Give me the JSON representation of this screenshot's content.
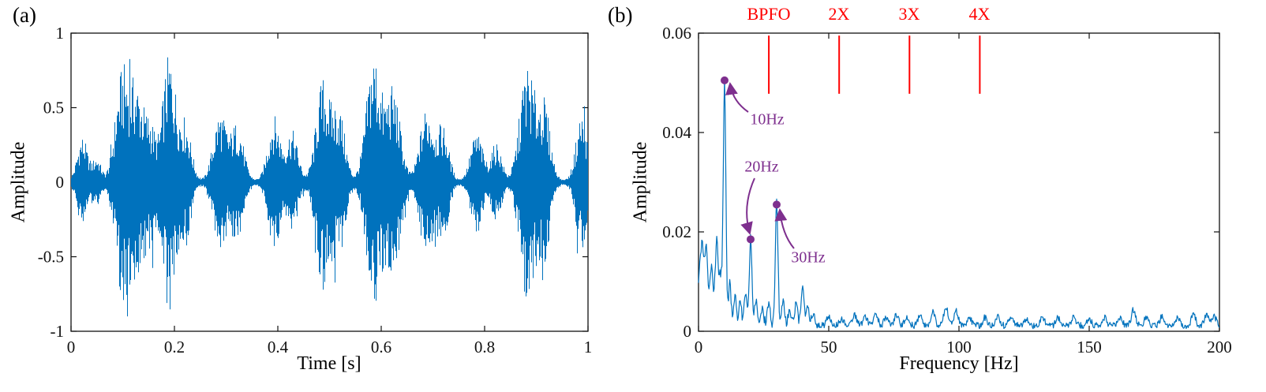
{
  "figure_background": "#ffffff",
  "chart_data": [
    {
      "type": "line",
      "panel_label": "(a)",
      "series_description": "Impulsive bearing vibration time signal with bursts repeating about every 0.1 s",
      "xlabel": "Time [s]",
      "ylabel": "Amplitude",
      "xlim": [
        0,
        1
      ],
      "ylim": [
        -1,
        1
      ],
      "xticks": [
        0,
        0.2,
        0.4,
        0.6,
        0.8,
        1
      ],
      "xtick_labels": [
        "0",
        "0.2",
        "0.4",
        "0.6",
        "0.8",
        "1"
      ],
      "yticks": [
        -1,
        -0.5,
        0,
        0.5,
        1
      ],
      "ytick_labels": [
        "-1",
        "-0.5",
        "0",
        "0.5",
        "1"
      ],
      "line_color": "#0072BD",
      "grid": false,
      "baseline_noise": 0.008,
      "bursts": [
        {
          "t": 0.022,
          "a": 0.3,
          "w": 0.01
        },
        {
          "t": 0.05,
          "a": 0.16,
          "w": 0.008
        },
        {
          "t": 0.098,
          "a": 0.68,
          "w": 0.013
        },
        {
          "t": 0.128,
          "a": 0.62,
          "w": 0.015
        },
        {
          "t": 0.155,
          "a": 0.28,
          "w": 0.009
        },
        {
          "t": 0.19,
          "a": 0.85,
          "w": 0.013
        },
        {
          "t": 0.222,
          "a": 0.38,
          "w": 0.011
        },
        {
          "t": 0.288,
          "a": 0.46,
          "w": 0.013
        },
        {
          "t": 0.322,
          "a": 0.38,
          "w": 0.012
        },
        {
          "t": 0.393,
          "a": 0.44,
          "w": 0.012
        },
        {
          "t": 0.428,
          "a": 0.34,
          "w": 0.011
        },
        {
          "t": 0.487,
          "a": 0.68,
          "w": 0.013
        },
        {
          "t": 0.518,
          "a": 0.48,
          "w": 0.012
        },
        {
          "t": 0.585,
          "a": 0.85,
          "w": 0.014
        },
        {
          "t": 0.623,
          "a": 0.62,
          "w": 0.014
        },
        {
          "t": 0.688,
          "a": 0.5,
          "w": 0.013
        },
        {
          "t": 0.72,
          "a": 0.36,
          "w": 0.011
        },
        {
          "t": 0.785,
          "a": 0.33,
          "w": 0.012
        },
        {
          "t": 0.823,
          "a": 0.26,
          "w": 0.01
        },
        {
          "t": 0.882,
          "a": 0.78,
          "w": 0.014
        },
        {
          "t": 0.915,
          "a": 0.52,
          "w": 0.012
        },
        {
          "t": 0.988,
          "a": 0.46,
          "w": 0.011
        }
      ]
    },
    {
      "type": "line",
      "panel_label": "(b)",
      "series_description": "Envelope spectrum with peaks at 10, 20 and 30 Hz and BPFO harmonic markers",
      "xlabel": "Frequency [Hz]",
      "ylabel": "Amplitude",
      "xlim": [
        0,
        200
      ],
      "ylim": [
        0,
        0.06
      ],
      "xticks": [
        0,
        50,
        100,
        150,
        200
      ],
      "xtick_labels": [
        "0",
        "50",
        "100",
        "150",
        "200"
      ],
      "yticks": [
        0,
        0.02,
        0.04,
        0.06
      ],
      "ytick_labels": [
        "0",
        "0.02",
        "0.04",
        "0.06"
      ],
      "line_color": "#0072BD",
      "grid": false,
      "noise_floor": 0.0013,
      "peaks": [
        [
          0.5,
          0.009,
          0.8
        ],
        [
          1.5,
          0.011,
          0.6
        ],
        [
          3,
          0.016,
          0.6
        ],
        [
          5,
          0.012,
          0.6
        ],
        [
          7,
          0.017,
          0.6
        ],
        [
          8.5,
          0.009,
          0.5
        ],
        [
          10,
          0.049,
          0.5
        ],
        [
          12,
          0.008,
          0.5
        ],
        [
          14,
          0.0055,
          0.5
        ],
        [
          16,
          0.0045,
          0.5
        ],
        [
          18,
          0.006,
          0.5
        ],
        [
          20,
          0.0172,
          0.5
        ],
        [
          22,
          0.005,
          0.5
        ],
        [
          24.5,
          0.0035,
          0.5
        ],
        [
          27,
          0.0045,
          0.5
        ],
        [
          30,
          0.0248,
          0.5
        ],
        [
          32.5,
          0.005,
          0.5
        ],
        [
          35,
          0.0035,
          0.5
        ],
        [
          37.5,
          0.005,
          0.5
        ],
        [
          40,
          0.0075,
          0.6
        ],
        [
          42,
          0.0035,
          0.5
        ],
        [
          44,
          0.0025,
          0.5
        ],
        [
          50,
          0.0018,
          0.8
        ],
        [
          55,
          0.0014,
          0.8
        ],
        [
          60,
          0.002,
          0.8
        ],
        [
          64,
          0.0016,
          0.8
        ],
        [
          68,
          0.0026,
          0.8
        ],
        [
          72,
          0.0018,
          0.8
        ],
        [
          76,
          0.0022,
          0.8
        ],
        [
          80,
          0.0018,
          0.8
        ],
        [
          85,
          0.002,
          0.8
        ],
        [
          90,
          0.0026,
          0.8
        ],
        [
          95,
          0.0036,
          0.8
        ],
        [
          99,
          0.0028,
          0.8
        ],
        [
          104,
          0.0018,
          0.8
        ],
        [
          110,
          0.0016,
          0.8
        ],
        [
          115,
          0.0018,
          0.8
        ],
        [
          120,
          0.002,
          0.8
        ],
        [
          126,
          0.0014,
          0.8
        ],
        [
          132,
          0.0018,
          0.8
        ],
        [
          138,
          0.0016,
          0.8
        ],
        [
          144,
          0.0018,
          0.8
        ],
        [
          150,
          0.0014,
          0.8
        ],
        [
          156,
          0.0016,
          0.8
        ],
        [
          162,
          0.0013,
          0.8
        ],
        [
          167,
          0.0032,
          0.8
        ],
        [
          172,
          0.0018,
          0.8
        ],
        [
          178,
          0.002,
          0.8
        ],
        [
          184,
          0.0016,
          0.8
        ],
        [
          190,
          0.0024,
          0.8
        ],
        [
          195,
          0.002,
          0.8
        ],
        [
          198,
          0.0018,
          0.8
        ]
      ],
      "marker_color": "#7E2F8E",
      "markers": [
        {
          "f": 10,
          "a": 0.0505
        },
        {
          "f": 20,
          "a": 0.0185
        },
        {
          "f": 30,
          "a": 0.0255
        }
      ],
      "annotations": [
        {
          "text": "10Hz",
          "f": 10,
          "a": 0.0505
        },
        {
          "text": "20Hz",
          "f": 20,
          "a": 0.0185
        },
        {
          "text": "30Hz",
          "f": 30,
          "a": 0.0255
        }
      ],
      "fault_markers": {
        "labels": [
          "BPFO",
          "2X",
          "3X",
          "4X"
        ],
        "freqs": [
          27,
          54,
          81,
          108
        ],
        "color": "#FF0000"
      }
    }
  ]
}
